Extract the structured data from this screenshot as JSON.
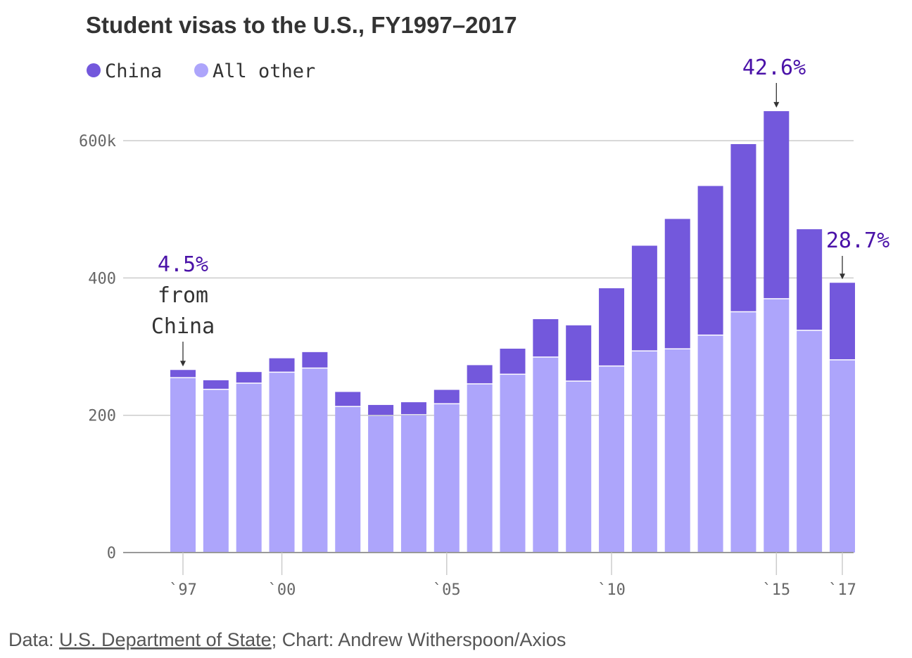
{
  "colors": {
    "china": "#7358dc",
    "other": "#ada5fb",
    "grid": "#cccccc",
    "axis": "#999999",
    "annotation": "#4a12a8"
  },
  "chart_data": {
    "type": "bar",
    "stacked": true,
    "title": "Student visas to the U.S., FY1997–2017",
    "legend": [
      {
        "name": "China",
        "color": "#7358dc"
      },
      {
        "name": "All other",
        "color": "#ada5fb"
      }
    ],
    "legend_placement": "top-left",
    "x": [
      1997,
      1998,
      1999,
      2000,
      2001,
      2002,
      2003,
      2004,
      2005,
      2006,
      2007,
      2008,
      2009,
      2010,
      2011,
      2012,
      2013,
      2014,
      2015,
      2016,
      2017
    ],
    "x_tick_labels": [
      {
        "year": 1997,
        "label": "`97"
      },
      {
        "year": 2000,
        "label": "`00"
      },
      {
        "year": 2005,
        "label": "`05"
      },
      {
        "year": 2010,
        "label": "`10"
      },
      {
        "year": 2015,
        "label": "`15"
      },
      {
        "year": 2017,
        "label": "`17"
      }
    ],
    "y_ticks": [
      {
        "value": 0,
        "label": "0"
      },
      {
        "value": 200,
        "label": "200"
      },
      {
        "value": 400,
        "label": "400"
      },
      {
        "value": 600,
        "label": "600k"
      }
    ],
    "ylim": [
      0,
      660
    ],
    "grid": true,
    "series": [
      {
        "name": "All other",
        "values": [
          254,
          237,
          246,
          262,
          268,
          212,
          199,
          200,
          216,
          245,
          259,
          284,
          249,
          271,
          293,
          296,
          316,
          350,
          369,
          323,
          280
        ]
      },
      {
        "name": "China",
        "values": [
          12,
          14,
          17,
          21,
          24,
          22,
          16,
          19,
          21,
          28,
          38,
          56,
          82,
          114,
          154,
          190,
          218,
          245,
          274,
          148,
          113
        ]
      }
    ],
    "annotations": [
      {
        "year": 1997,
        "pct": "4.5%",
        "lines": [
          "from",
          "China"
        ]
      },
      {
        "year": 2015,
        "pct": "42.6%",
        "lines": []
      },
      {
        "year": 2017,
        "pct": "28.7%",
        "lines": []
      }
    ]
  },
  "source": {
    "prefix": "Data: ",
    "link": "U.S. Department of State",
    "suffix": "; Chart: Andrew Witherspoon/Axios"
  }
}
